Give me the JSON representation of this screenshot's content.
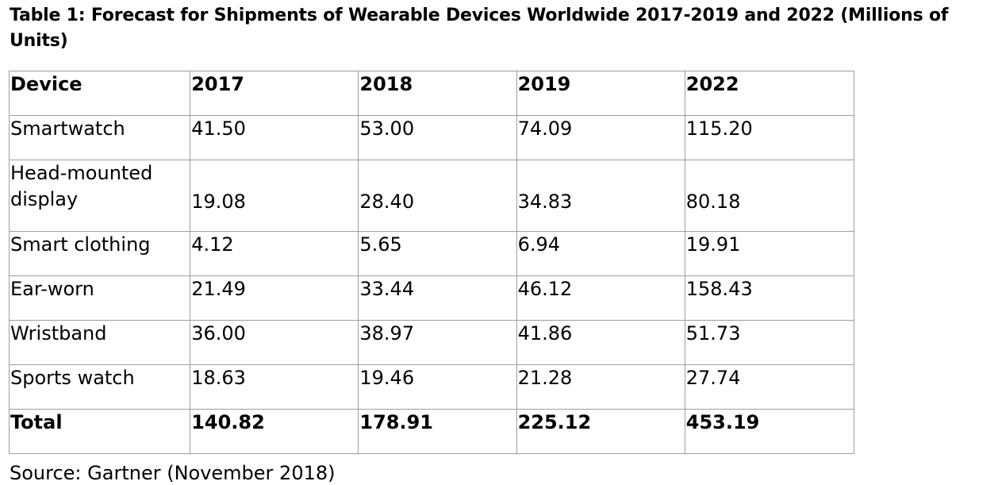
{
  "caption": "Table 1: Forecast for Shipments of Wearable Devices Worldwide 2017-2019 and 2022 (Millions of Units)",
  "table": {
    "headers": [
      "Device",
      "2017",
      "2018",
      "2019",
      "2022"
    ],
    "rows": [
      [
        "Smartwatch",
        "41.50",
        "53.00",
        "74.09",
        "115.20"
      ],
      [
        "Head-mounted display",
        "19.08",
        "28.40",
        "34.83",
        "80.18"
      ],
      [
        "Smart clothing",
        "4.12",
        "5.65",
        "6.94",
        "19.91"
      ],
      [
        "Ear-worn",
        "21.49",
        "33.44",
        "46.12",
        "158.43"
      ],
      [
        "Wristband",
        "36.00",
        "38.97",
        "41.86",
        "51.73"
      ],
      [
        "Sports watch",
        "18.63",
        "19.46",
        "21.28",
        "27.74"
      ]
    ],
    "total": [
      "Total",
      "140.82",
      "178.91",
      "225.12",
      "453.19"
    ]
  },
  "source": "Source: Gartner (November 2018)"
}
